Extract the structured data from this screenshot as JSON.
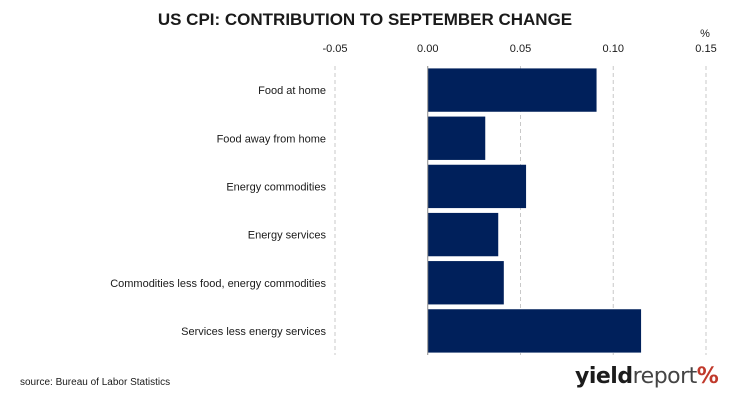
{
  "chart_data": {
    "type": "bar",
    "orientation": "horizontal",
    "title": "US CPI: CONTRIBUTION TO SEPTEMBER CHANGE",
    "unit": "%",
    "categories": [
      "Food at home",
      "Food away from home",
      "Energy commodities",
      "Energy services",
      "Commodities less food, energy commodities",
      "Services less energy services"
    ],
    "values": [
      0.091,
      0.031,
      0.053,
      0.038,
      0.041,
      0.115
    ],
    "xlim": [
      -0.05,
      0.15
    ],
    "xticks": [
      "-0.05",
      "0.00",
      "0.05",
      "0.10",
      "0.15"
    ],
    "xtick_values": [
      -0.05,
      0.0,
      0.05,
      0.1,
      0.15
    ],
    "grid": "vertical dashed",
    "legend": "none",
    "bar_color": "#00205b",
    "grid_color": "#c8c8c8"
  },
  "source": "source: Bureau of Labor Statistics",
  "logo": {
    "part1": "yield",
    "part2": "report",
    "part3": "%"
  }
}
